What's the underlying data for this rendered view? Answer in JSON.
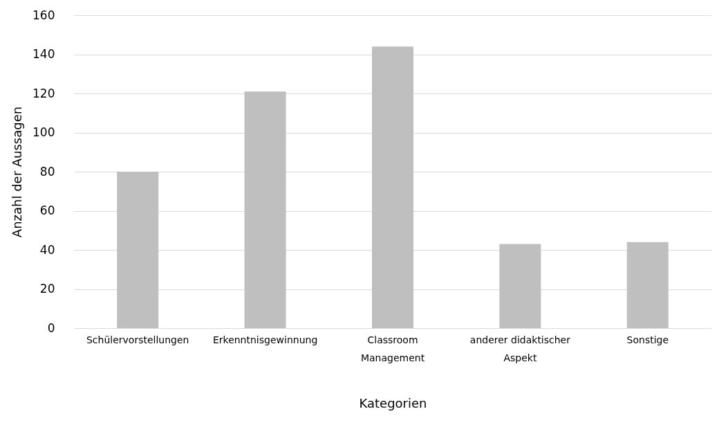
{
  "chart_data": {
    "type": "bar",
    "xlabel": "Kategorien",
    "ylabel": "Anzahl der Aussagen",
    "categories": [
      "Schülervorstellungen",
      "Erkenntnisgewinnung",
      "Classroom\nManagement",
      "anderer didaktischer\nAspekt",
      "Sonstige"
    ],
    "values": [
      80,
      121,
      144,
      43,
      44
    ],
    "color": "#bfbfbf",
    "ylim": [
      0,
      160
    ],
    "yticks": [
      0,
      20,
      40,
      60,
      80,
      100,
      120,
      140,
      160
    ],
    "grid": "y"
  }
}
